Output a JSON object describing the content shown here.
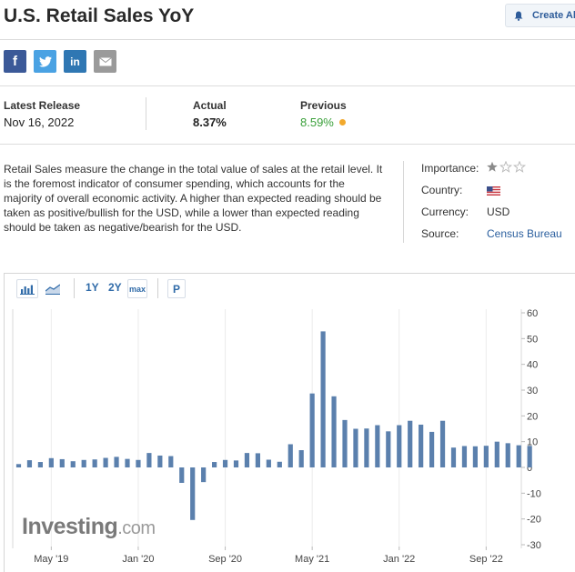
{
  "page": {
    "title": "U.S. Retail Sales YoY",
    "create_alert_label": "Create Al"
  },
  "share": {
    "facebook_glyph": "f",
    "linkedin_glyph": "in"
  },
  "release": {
    "latest_label": "Latest Release",
    "latest_date": "Nov 16, 2022",
    "actual_label": "Actual",
    "actual_value": "8.37%",
    "previous_label": "Previous",
    "previous_value": "8.59%",
    "previous_color": "#3aa03a",
    "dot_color": "#f2a92c"
  },
  "description": "Retail Sales measure the change in the total value of sales at the retail level. It is the foremost indicator of consumer spending, which accounts for the majority of overall economic activity. A higher than expected reading should be taken as positive/bullish for the USD, while a lower than expected reading should be taken as negative/bearish for the USD.",
  "meta": {
    "importance_label": "Importance:",
    "importance_stars": 1,
    "importance_max": 3,
    "country_label": "Country:",
    "country_icon": "us-flag-icon",
    "currency_label": "Currency:",
    "currency_value": "USD",
    "source_label": "Source:",
    "source_value": "Census Bureau"
  },
  "toolbar": {
    "bar_chart_icon": "bar-chart-icon",
    "area_chart_icon": "area-chart-icon",
    "range_1y": "1Y",
    "range_2y": "2Y",
    "range_max": "max",
    "p_label": "P"
  },
  "watermark": {
    "brand": "Investing",
    "suffix": ".com"
  },
  "chart_data": {
    "type": "bar",
    "bar_color": "#5b80ad",
    "ylim": [
      -30,
      60
    ],
    "yticks": [
      60,
      50,
      40,
      30,
      20,
      10,
      0,
      -10,
      -20,
      -30
    ],
    "xtick_labels": [
      {
        "label": "May '19",
        "index": 3
      },
      {
        "label": "Jan '20",
        "index": 11
      },
      {
        "label": "Sep '20",
        "index": 19
      },
      {
        "label": "May '21",
        "index": 27
      },
      {
        "label": "Jan '22",
        "index": 35
      },
      {
        "label": "Sep '22",
        "index": 43
      }
    ],
    "values": [
      1.3,
      2.8,
      2.1,
      3.6,
      3.2,
      2.4,
      2.9,
      3.1,
      3.7,
      4.1,
      3.3,
      2.9,
      5.6,
      4.6,
      4.4,
      -6.0,
      -20.4,
      -5.7,
      2.1,
      2.9,
      2.7,
      5.6,
      5.5,
      3.0,
      2.2,
      9.0,
      6.7,
      28.7,
      52.8,
      27.6,
      18.4,
      15.0,
      15.1,
      16.4,
      14.0,
      16.4,
      18.1,
      16.6,
      13.8,
      18.1,
      7.7,
      8.3,
      8.2,
      8.4,
      10.0,
      9.4,
      8.6,
      8.37
    ]
  }
}
